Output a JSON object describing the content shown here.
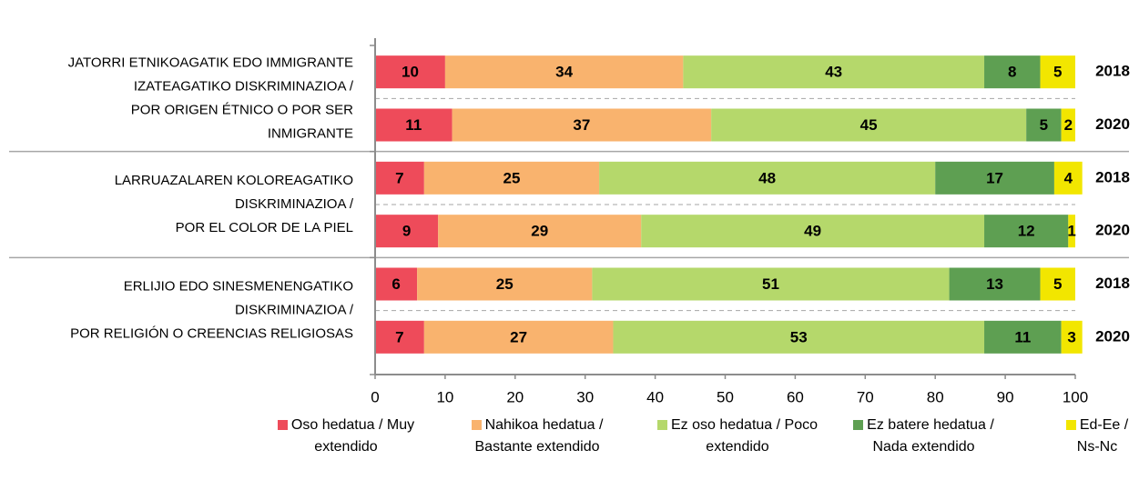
{
  "chart_data": {
    "type": "stacked-barh",
    "categories": [
      "2018",
      "2020",
      "2018",
      "2020",
      "2018",
      "2020"
    ],
    "groups": [
      {
        "label": [
          "JATORRI ETNIKOAGATIK EDO IMMIGRANTE",
          "IZATEAGATIKO DISKRIMINAZIOA /",
          "POR ORIGEN ÉTNICO O POR SER",
          "INMIGRANTE"
        ]
      },
      {
        "label": [
          "LARRUAZALAREN KOLOREAGATIKO",
          "DISKRIMINAZIOA /",
          "POR EL COLOR DE LA PIEL"
        ]
      },
      {
        "label": [
          "ERLIJIO EDO SINESMENENGATIKO",
          "DISKRIMINAZIOA /",
          "POR RELIGIÓN O CREENCIAS RELIGIOSAS"
        ]
      }
    ],
    "series": [
      {
        "name": "Oso hedatua / Muy extendido",
        "color": "#ee4b5a",
        "values": [
          10,
          11,
          7,
          9,
          6,
          7
        ]
      },
      {
        "name": "Nahikoa hedatua / Bastante extendido",
        "color": "#f9b36e",
        "values": [
          34,
          37,
          25,
          29,
          25,
          27
        ]
      },
      {
        "name": "Ez oso hedatua / Poco extendido",
        "color": "#b5d86b",
        "values": [
          43,
          45,
          48,
          49,
          51,
          53
        ]
      },
      {
        "name": "Ez batere hedatua / Nada extendido",
        "color": "#5e9f52",
        "values": [
          8,
          5,
          17,
          12,
          13,
          11
        ]
      },
      {
        "name": "Ed-Ee / Ns-Nc",
        "color": "#f2e600",
        "values": [
          5,
          2,
          4,
          1,
          5,
          3
        ]
      }
    ],
    "xlim": [
      0,
      100
    ],
    "xticks": [
      0,
      10,
      20,
      30,
      40,
      50,
      60,
      70,
      80,
      90,
      100
    ]
  }
}
